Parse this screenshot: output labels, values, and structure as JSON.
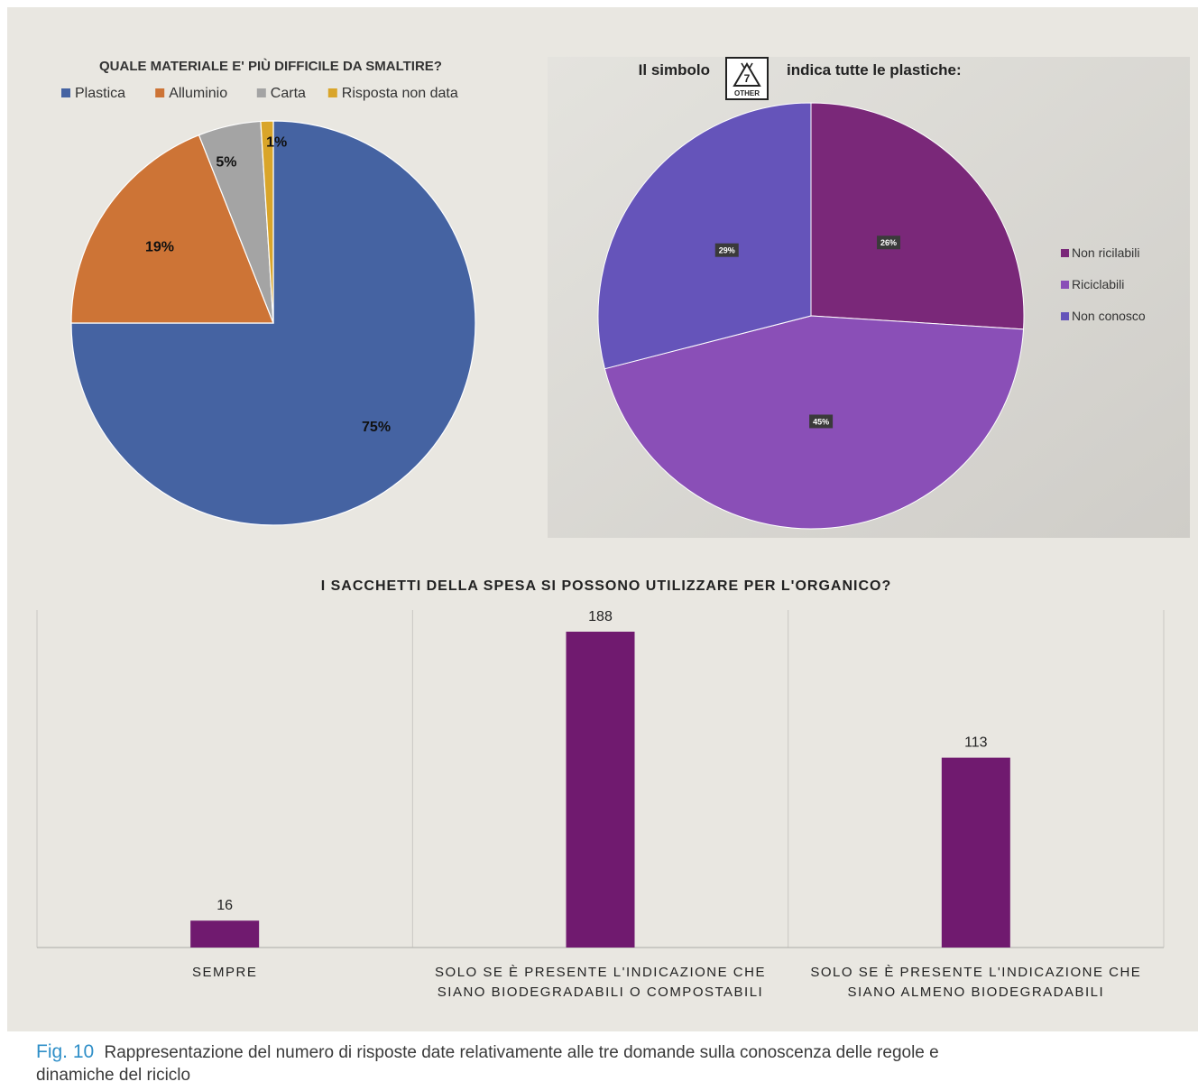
{
  "caption": {
    "fig_label": "Fig. 10",
    "text": "Rappresentazione del numero di risposte date relativamente alle tre domande sulla conoscenza delle regole e dinamiche del riciclo"
  },
  "symbol": {
    "icon": "recycling-7-other-icon",
    "number": "7",
    "code": "OTHER"
  },
  "chart_data": [
    {
      "type": "pie",
      "title": "QUALE MATERIALE E' PIÙ DIFFICILE DA SMALTIRE?",
      "legend_position": "top",
      "labels": [
        "Plastica",
        "Alluminio",
        "Carta",
        "Risposta non data"
      ],
      "values": [
        75,
        19,
        5,
        1
      ],
      "value_labels": [
        "75%",
        "19%",
        "5%",
        "1%"
      ],
      "colors": [
        "#4563a2",
        "#cd7436",
        "#a4a4a4",
        "#d9a52a"
      ]
    },
    {
      "type": "pie",
      "title_before": "Il simbolo",
      "title_after": "indica tutte le plastiche:",
      "legend_position": "right",
      "labels": [
        "Non ricilabili",
        "Riciclabili",
        "Non conosco"
      ],
      "values": [
        26,
        45,
        29
      ],
      "value_labels": [
        "26%",
        "45%",
        "29%"
      ],
      "colors": [
        "#7a2879",
        "#8a4fb7",
        "#6554ba"
      ]
    },
    {
      "type": "bar",
      "title": "I SACCHETTI DELLA SPESA SI POSSONO UTILIZZARE PER L'ORGANICO?",
      "categories": [
        [
          "SEMPRE"
        ],
        [
          "SOLO SE È PRESENTE L'INDICAZIONE CHE",
          "SIANO BIODEGRADABILI O COMPOSTABILI"
        ],
        [
          "SOLO SE È PRESENTE L'INDICAZIONE CHE",
          "SIANO ALMENO BIODEGRADABILI"
        ]
      ],
      "values": [
        16,
        188,
        113
      ],
      "color": "#701a6f",
      "ylim": [
        0,
        200
      ]
    }
  ]
}
